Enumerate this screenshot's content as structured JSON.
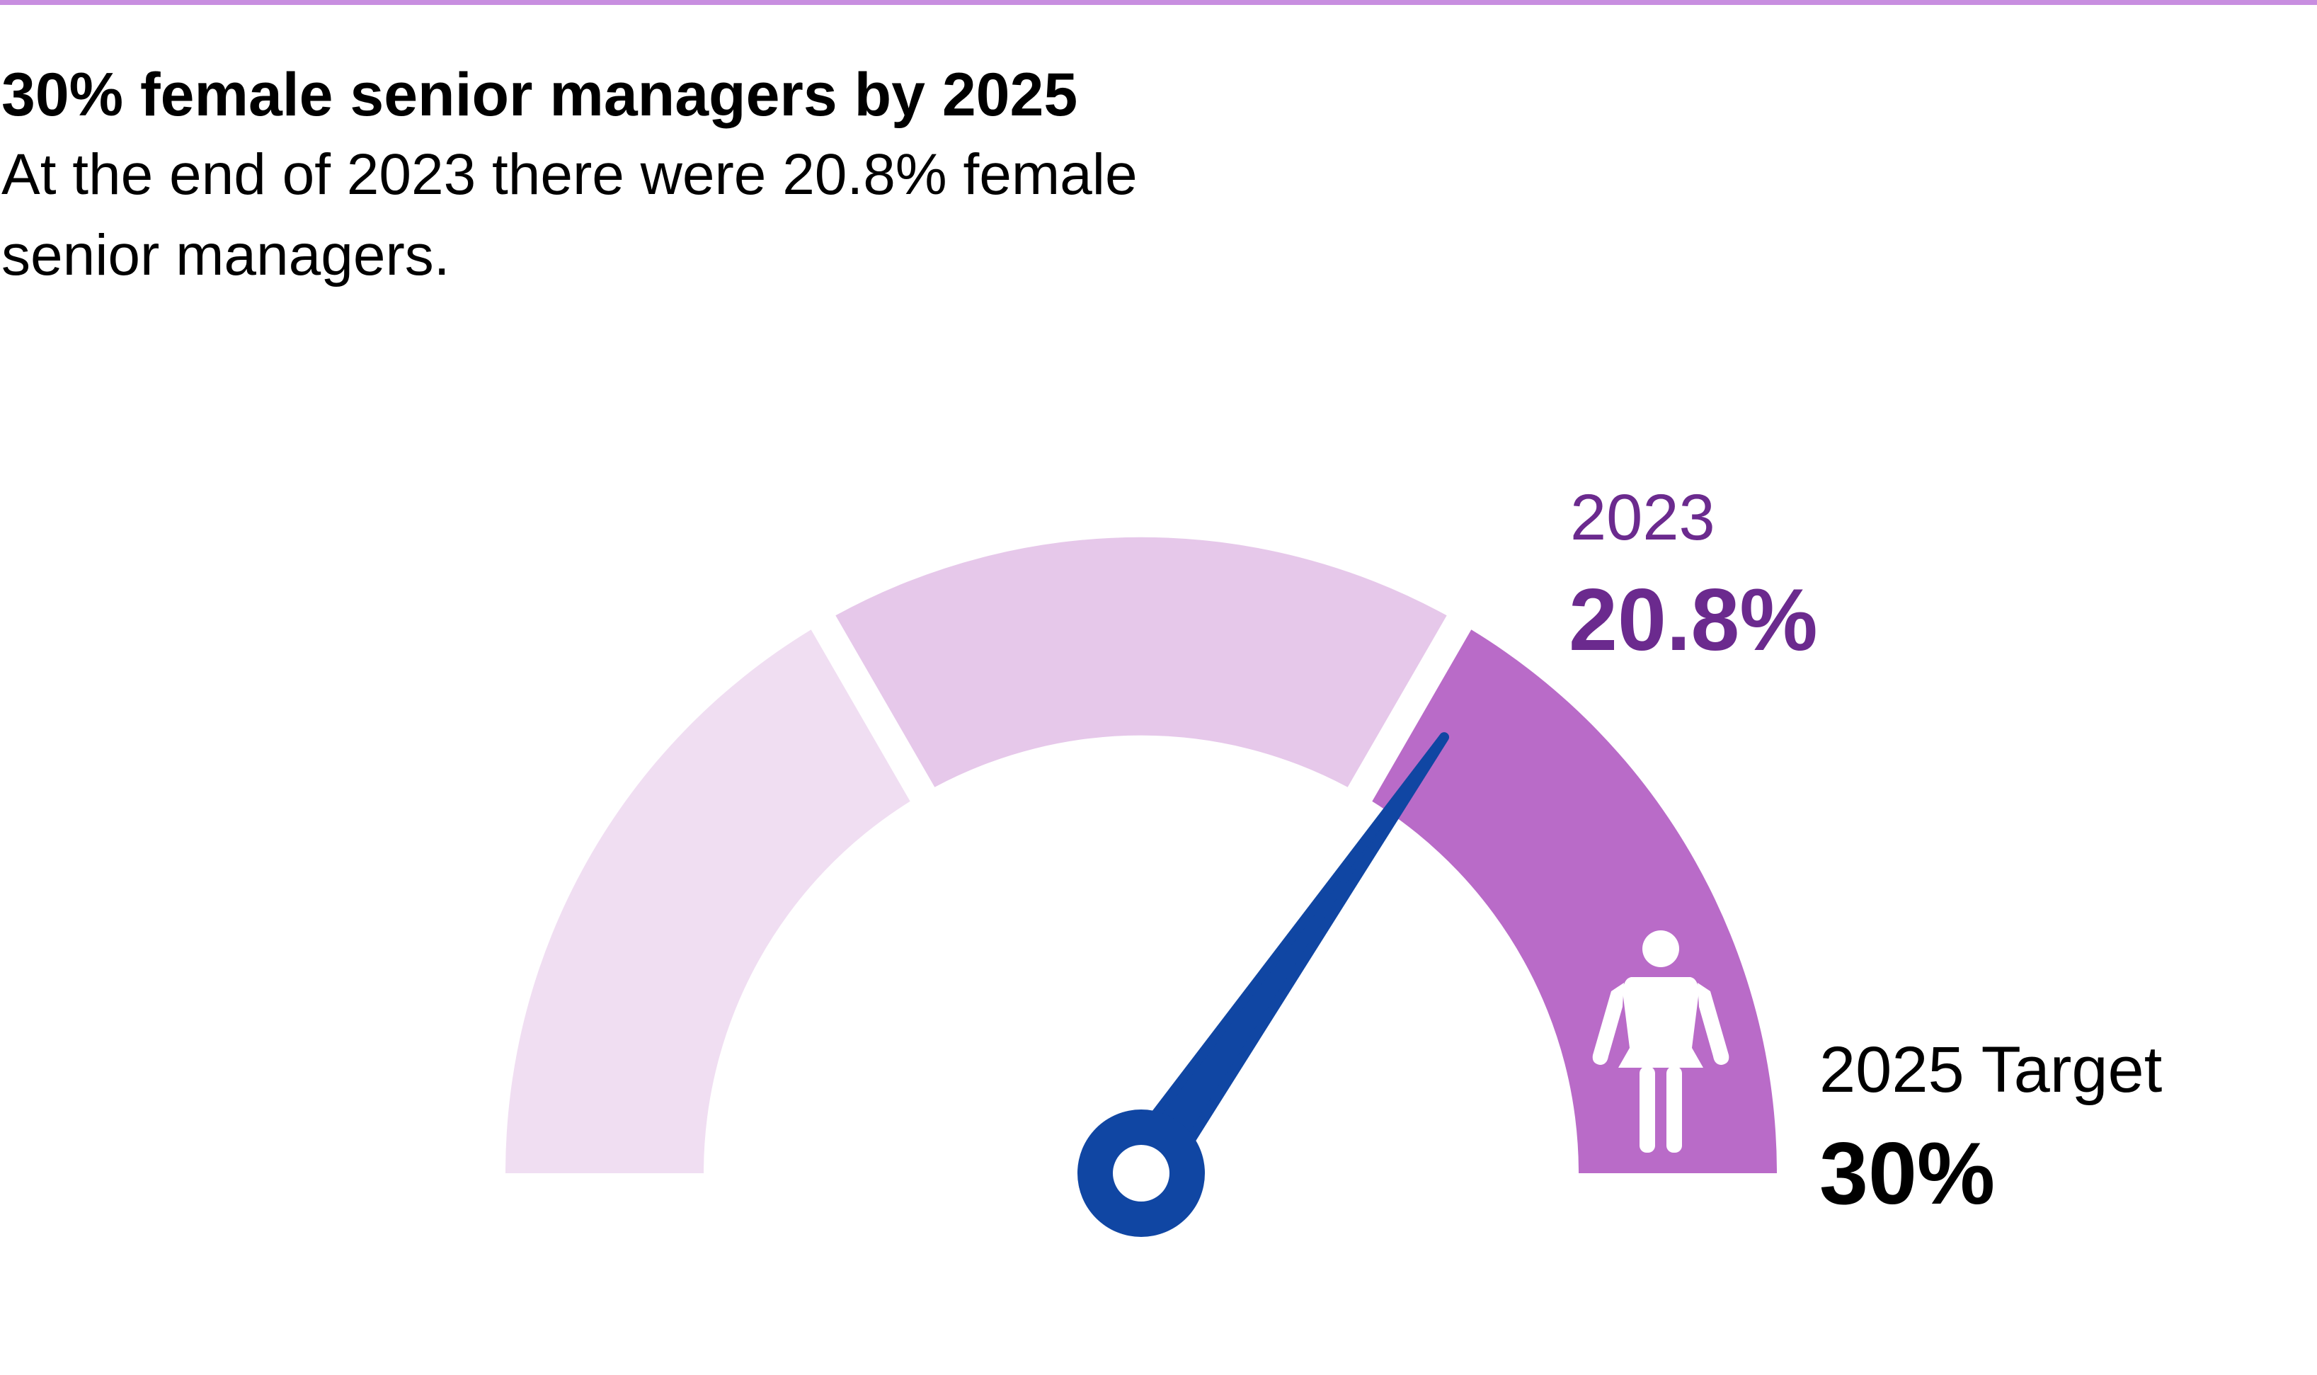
{
  "colors": {
    "accent_rule": "#c88ee0",
    "band_light": "#f0def2",
    "band_mid": "#e6c8ea",
    "band_target": "#b96bc8",
    "needle": "#1046a3",
    "current_label": "#6b2a8e",
    "text": "#000000",
    "icon": "#ffffff"
  },
  "header": {
    "title": "30% female senior managers by 2025",
    "subtitle": "At the end of 2023 there were 20.8% female senior managers."
  },
  "chart_data": {
    "type": "gauge",
    "title": "30% female senior managers by 2025",
    "subtitle": "At the end of 2023 there were 20.8% female senior managers.",
    "min": 0,
    "max": 30,
    "bands": [
      {
        "from": 0,
        "to": 10,
        "color": "#f0def2"
      },
      {
        "from": 10,
        "to": 20,
        "color": "#e6c8ea"
      },
      {
        "from": 20,
        "to": 30,
        "color": "#b96bc8"
      }
    ],
    "current": {
      "year_label": "2023",
      "value": 20.8,
      "value_label": "20.8%"
    },
    "target": {
      "label": "2025 Target",
      "value": 30,
      "value_label": "30%"
    }
  },
  "icons": {
    "target_band": "female-person-icon"
  }
}
